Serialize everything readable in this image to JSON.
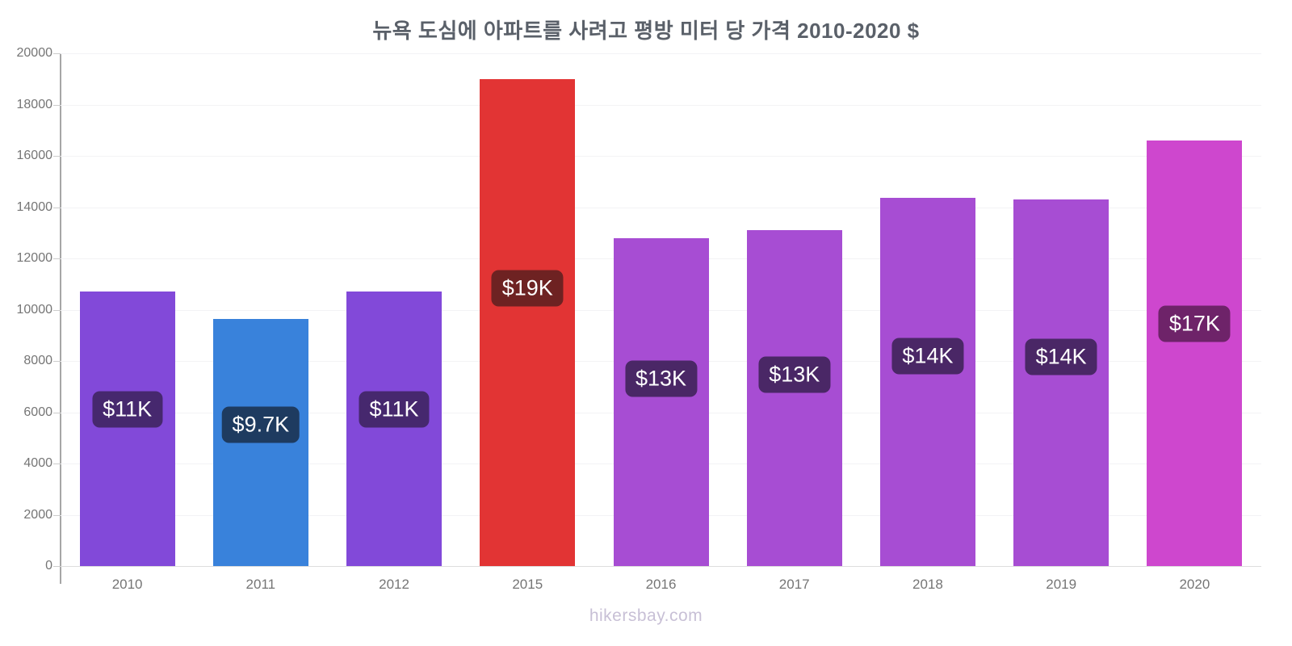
{
  "page": {
    "footer": "hikersbay.com"
  },
  "chart_data": {
    "type": "bar",
    "title": "뉴욕 도심에 아파트를 사려고 평방 미터 당 가격 2010-2020 $",
    "xlabel": "",
    "ylabel": "",
    "ylim": [
      0,
      20000
    ],
    "ytick_interval": 2000,
    "yticks": [
      0,
      2000,
      4000,
      6000,
      8000,
      10000,
      12000,
      14000,
      16000,
      18000,
      20000
    ],
    "grid": true,
    "legend": false,
    "categories": [
      "2010",
      "2011",
      "2012",
      "2015",
      "2016",
      "2017",
      "2018",
      "2019",
      "2020"
    ],
    "values": [
      10700,
      9650,
      10700,
      19000,
      12800,
      13100,
      14350,
      14300,
      16600
    ],
    "bar_labels": [
      "$11K",
      "$9.7K",
      "$11K",
      "$19K",
      "$13K",
      "$13K",
      "$14K",
      "$14K",
      "$17K"
    ],
    "bar_colors": [
      "#8249d9",
      "#3982db",
      "#8249d9",
      "#e23434",
      "#a74dd3",
      "#a74dd3",
      "#a74dd3",
      "#a74dd3",
      "#ce47ce"
    ],
    "badge_colors": [
      "#46286e",
      "#1e3b60",
      "#46286e",
      "#6e2222",
      "#4a2766",
      "#4a2766",
      "#4a2766",
      "#4a2766",
      "#6e2369"
    ],
    "axis_color": "#a6a6a6",
    "grid_color": "#f3f3f5",
    "tick_label_color": "#757575",
    "title_color": "#5a6069"
  }
}
